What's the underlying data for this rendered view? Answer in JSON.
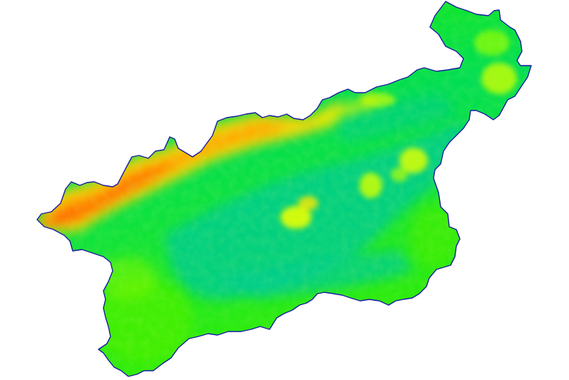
{
  "map": {
    "kind": "elevation relief map",
    "background_color": "#ffffff",
    "boundary_color": "#1a1aa0",
    "palette": [
      "#00cc99",
      "#00dd66",
      "#22ee00",
      "#88ff00",
      "#ddff00",
      "#ffcc00",
      "#ff9900",
      "#ff5a00"
    ],
    "legend": null,
    "labels": []
  }
}
